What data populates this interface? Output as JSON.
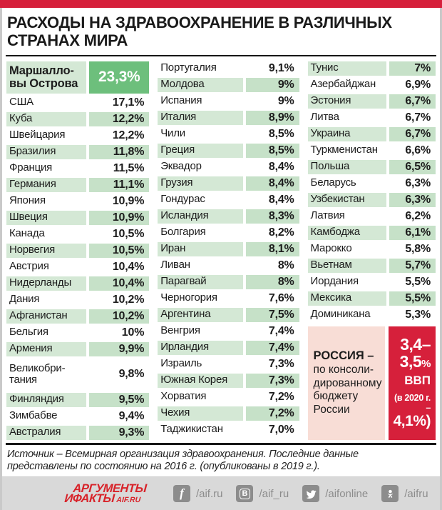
{
  "title": "РАСХОДЫ НА ЗДРАВООХРАНЕНИЕ В РАЗЛИЧНЫХ СТРАНАХ МИРА",
  "colors": {
    "accent_red": "#d6203b",
    "highlight_green": "#6dbf7c",
    "stripe_green_name": "#d4e8d5",
    "stripe_green_value": "#c6e1c8",
    "russia_pink": "#f8ddd6",
    "footer_gray": "#d9d9d9",
    "icon_gray": "#8c8c8c",
    "logo_red": "#d8232a"
  },
  "chart_data": {
    "type": "table",
    "title": "РАСХОДЫ НА ЗДРАВООХРАНЕНИЕ В РАЗЛИЧНЫХ СТРАНАХ МИРА",
    "columns": [
      {
        "green_first_row": true,
        "rows": [
          {
            "name": "Маршалло-\nвы Острова",
            "value": "23,3%",
            "highlight": true,
            "tall": true
          },
          {
            "name": "США",
            "value": "17,1%"
          },
          {
            "name": "Куба",
            "value": "12,2%"
          },
          {
            "name": "Швейцария",
            "value": "12,2%"
          },
          {
            "name": "Бразилия",
            "value": "11,8%"
          },
          {
            "name": "Франция",
            "value": "11,5%"
          },
          {
            "name": "Германия",
            "value": "11,1%"
          },
          {
            "name": "Япония",
            "value": "10,9%"
          },
          {
            "name": "Швеция",
            "value": "10,9%"
          },
          {
            "name": "Канада",
            "value": "10,5%"
          },
          {
            "name": "Норвегия",
            "value": "10,5%"
          },
          {
            "name": "Австрия",
            "value": "10,4%"
          },
          {
            "name": "Нидерланды",
            "value": "10,4%"
          },
          {
            "name": "Дания",
            "value": "10,2%"
          },
          {
            "name": "Афганистан",
            "value": "10,2%"
          },
          {
            "name": "Бельгия",
            "value": "10%"
          },
          {
            "name": "Армения",
            "value": "9,9%"
          },
          {
            "name": "Великобри-\nтания",
            "value": "9,8%",
            "tall": true
          },
          {
            "name": "Финляндия",
            "value": "9,5%"
          },
          {
            "name": "Зимбабве",
            "value": "9,4%"
          },
          {
            "name": "Австралия",
            "value": "9,3%"
          }
        ]
      },
      {
        "green_first_row": false,
        "rows": [
          {
            "name": "Португалия",
            "value": "9,1%"
          },
          {
            "name": "Молдова",
            "value": "9%"
          },
          {
            "name": "Испания",
            "value": "9%"
          },
          {
            "name": "Италия",
            "value": "8,9%"
          },
          {
            "name": "Чили",
            "value": "8,5%"
          },
          {
            "name": "Греция",
            "value": "8,5%"
          },
          {
            "name": "Эквадор",
            "value": "8,4%"
          },
          {
            "name": "Грузия",
            "value": "8,4%"
          },
          {
            "name": "Гондурас",
            "value": "8,4%"
          },
          {
            "name": "Исландия",
            "value": "8,3%"
          },
          {
            "name": "Болгария",
            "value": "8,2%"
          },
          {
            "name": "Иран",
            "value": "8,1%"
          },
          {
            "name": "Ливан",
            "value": "8%"
          },
          {
            "name": "Парагвай",
            "value": "8%"
          },
          {
            "name": "Черногория",
            "value": "7,6%"
          },
          {
            "name": "Аргентина",
            "value": "7,5%"
          },
          {
            "name": "Венгрия",
            "value": "7,4%"
          },
          {
            "name": "Ирландия",
            "value": "7,4%"
          },
          {
            "name": "Израиль",
            "value": "7,3%"
          },
          {
            "name": "Южная Корея",
            "value": "7,3%"
          },
          {
            "name": "Хорватия",
            "value": "7,2%"
          },
          {
            "name": "Чехия",
            "value": "7,2%"
          },
          {
            "name": "Таджикистан",
            "value": "7,0%"
          }
        ]
      },
      {
        "green_first_row": true,
        "rows": [
          {
            "name": "Тунис",
            "value": "7%"
          },
          {
            "name": "Азербайджан",
            "value": "6,9%"
          },
          {
            "name": "Эстония",
            "value": "6,7%"
          },
          {
            "name": "Литва",
            "value": "6,7%"
          },
          {
            "name": "Украина",
            "value": "6,7%"
          },
          {
            "name": "Туркменистан",
            "value": "6,6%"
          },
          {
            "name": "Польша",
            "value": "6,5%"
          },
          {
            "name": "Беларусь",
            "value": "6,3%"
          },
          {
            "name": "Узбекистан",
            "value": "6,3%"
          },
          {
            "name": "Латвия",
            "value": "6,2%"
          },
          {
            "name": "Камбоджа",
            "value": "6,1%"
          },
          {
            "name": "Марокко",
            "value": "5,8%"
          },
          {
            "name": "Вьетнам",
            "value": "5,7%"
          },
          {
            "name": "Иордания",
            "value": "5,5%"
          },
          {
            "name": "Мексика",
            "value": "5,5%"
          },
          {
            "name": "Доминикана",
            "value": "5,3%"
          }
        ]
      }
    ],
    "russia": {
      "label_bold": "РОССИЯ –",
      "label_rest": "по консоли-\nдированному\nбюджету\nРоссии",
      "value_line1": "3,4–",
      "value_line2": "3,5",
      "value_percent": "%",
      "gdp_label": "ВВП",
      "note_line1": "(в 2020 г. –",
      "note_line2": "4,1%)"
    }
  },
  "source": {
    "text": "Источник – Всемирная организация здравоохранения. Последние данные\nпредставлены по состоянию на 2016 г. (опубликованы в 2019 г.)."
  },
  "footer": {
    "logo": {
      "line1": "АРГУМЕНТЫ",
      "line2_prefix": "И",
      "line2": "ФАКТЫ",
      "suffix": "AIF.RU"
    },
    "socials": [
      {
        "icon": "facebook-icon",
        "handle": "/aif.ru"
      },
      {
        "icon": "vk-icon",
        "handle": "/aif_ru"
      },
      {
        "icon": "twitter-icon",
        "handle": "/aifonline"
      },
      {
        "icon": "ok-icon",
        "handle": "/aifru"
      }
    ]
  }
}
